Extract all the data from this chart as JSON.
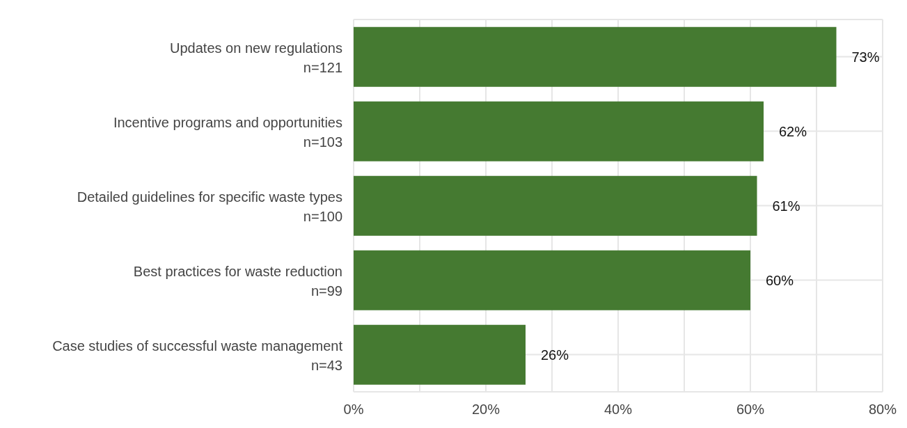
{
  "chart_data": {
    "type": "bar",
    "orientation": "horizontal",
    "categories": [
      "Updates on new regulations\nn=121",
      "Incentive programs and opportunities\nn=103",
      "Detailed guidelines for specific waste types\nn=100",
      "Best practices for waste reduction\nn=99",
      "Case studies of successful waste management\nn=43"
    ],
    "values": [
      73,
      62,
      61,
      60,
      26
    ],
    "value_labels": [
      "73%",
      "62%",
      "61%",
      "60%",
      "26%"
    ],
    "color": "#457a31",
    "xlim": [
      0,
      80
    ],
    "xticks": [
      {
        "value": 0,
        "label": "0%"
      },
      {
        "value": 10,
        "label": null
      },
      {
        "value": 20,
        "label": "20%"
      },
      {
        "value": 30,
        "label": null
      },
      {
        "value": 40,
        "label": "40%"
      },
      {
        "value": 50,
        "label": null
      },
      {
        "value": 60,
        "label": "60%"
      },
      {
        "value": 70,
        "label": null
      },
      {
        "value": 80,
        "label": "80%"
      }
    ],
    "grid": true
  }
}
